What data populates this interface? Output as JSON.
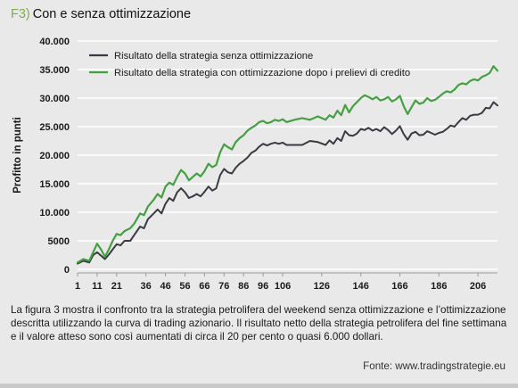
{
  "figure": {
    "number": "F3)",
    "title": "Con e senza ottimizzazione",
    "caption": "La figura 3 mostra il confronto tra la strategia petrolifera del weekend senza ottimizzazione e l’ottimizzazione descritta utilizzando la curva di trading azionario. Il risultato netto della strategia petrolifera del fine settimana e il valore atteso sono così aumentati di circa il 20 per cento o quasi 6.000 dollari.",
    "source": "Fonte: www.tradingstrategie.eu"
  },
  "chart_data": {
    "type": "line",
    "title": "",
    "xlabel": "",
    "ylabel": "Profitto in punti",
    "xlim": [
      1,
      216
    ],
    "ylim": [
      0,
      40000
    ],
    "x_ticks": [
      1,
      11,
      21,
      36,
      46,
      56,
      66,
      76,
      86,
      96,
      106,
      126,
      146,
      166,
      186,
      206
    ],
    "y_ticks": [
      {
        "value": 0,
        "label": "0"
      },
      {
        "value": 5000,
        "label": "5000"
      },
      {
        "value": 10000,
        "label": "10.000"
      },
      {
        "value": 15000,
        "label": "15.000"
      },
      {
        "value": 20000,
        "label": "20.000"
      },
      {
        "value": 25000,
        "label": "25.000"
      },
      {
        "value": 30000,
        "label": "30.000"
      },
      {
        "value": 35000,
        "label": "35.000"
      },
      {
        "value": 40000,
        "label": "40.000"
      }
    ],
    "grid": "horizontal",
    "legend_position": "top-left",
    "series": [
      {
        "name": "Risultato della strategia senza ottimizzazione",
        "color": "#3a3a42",
        "points": [
          [
            1,
            1000
          ],
          [
            4,
            1500
          ],
          [
            7,
            1200
          ],
          [
            9,
            2500
          ],
          [
            11,
            3000
          ],
          [
            13,
            2400
          ],
          [
            15,
            1800
          ],
          [
            17,
            2600
          ],
          [
            19,
            3500
          ],
          [
            21,
            4400
          ],
          [
            23,
            4200
          ],
          [
            25,
            5000
          ],
          [
            28,
            5000
          ],
          [
            30,
            6000
          ],
          [
            33,
            7500
          ],
          [
            35,
            7200
          ],
          [
            37,
            8800
          ],
          [
            40,
            9800
          ],
          [
            42,
            10500
          ],
          [
            44,
            9800
          ],
          [
            46,
            11500
          ],
          [
            48,
            12500
          ],
          [
            50,
            12000
          ],
          [
            52,
            13500
          ],
          [
            54,
            14200
          ],
          [
            56,
            13500
          ],
          [
            58,
            12500
          ],
          [
            60,
            12800
          ],
          [
            62,
            13200
          ],
          [
            64,
            12800
          ],
          [
            66,
            13600
          ],
          [
            68,
            14500
          ],
          [
            70,
            13800
          ],
          [
            72,
            14200
          ],
          [
            74,
            16500
          ],
          [
            76,
            17600
          ],
          [
            78,
            17000
          ],
          [
            80,
            16800
          ],
          [
            82,
            17800
          ],
          [
            84,
            18500
          ],
          [
            86,
            19000
          ],
          [
            88,
            19600
          ],
          [
            90,
            20400
          ],
          [
            92,
            20800
          ],
          [
            94,
            21500
          ],
          [
            96,
            22000
          ],
          [
            98,
            21700
          ],
          [
            100,
            22000
          ],
          [
            102,
            22200
          ],
          [
            104,
            22000
          ],
          [
            106,
            22200
          ],
          [
            108,
            21800
          ],
          [
            112,
            21800
          ],
          [
            116,
            21800
          ],
          [
            120,
            22500
          ],
          [
            124,
            22300
          ],
          [
            128,
            21800
          ],
          [
            130,
            22600
          ],
          [
            132,
            22000
          ],
          [
            134,
            23000
          ],
          [
            136,
            22500
          ],
          [
            138,
            24200
          ],
          [
            140,
            23500
          ],
          [
            142,
            23400
          ],
          [
            144,
            23800
          ],
          [
            146,
            24600
          ],
          [
            148,
            24400
          ],
          [
            150,
            24800
          ],
          [
            152,
            24300
          ],
          [
            154,
            24600
          ],
          [
            156,
            24200
          ],
          [
            158,
            24900
          ],
          [
            160,
            24400
          ],
          [
            162,
            23700
          ],
          [
            164,
            24300
          ],
          [
            166,
            25100
          ],
          [
            168,
            23700
          ],
          [
            170,
            22700
          ],
          [
            172,
            23800
          ],
          [
            174,
            24100
          ],
          [
            176,
            23500
          ],
          [
            178,
            23600
          ],
          [
            180,
            24200
          ],
          [
            182,
            23900
          ],
          [
            184,
            23600
          ],
          [
            186,
            23900
          ],
          [
            188,
            24100
          ],
          [
            190,
            24600
          ],
          [
            192,
            25200
          ],
          [
            194,
            25000
          ],
          [
            196,
            25800
          ],
          [
            198,
            26500
          ],
          [
            200,
            26200
          ],
          [
            202,
            26900
          ],
          [
            204,
            27100
          ],
          [
            206,
            27100
          ],
          [
            208,
            27400
          ],
          [
            210,
            28300
          ],
          [
            212,
            28200
          ],
          [
            214,
            29300
          ],
          [
            216,
            28700
          ]
        ]
      },
      {
        "name": "Risultato della strategia con ottimizzazione dopo i prelievi di credito",
        "color": "#44a041",
        "points": [
          [
            1,
            1200
          ],
          [
            4,
            1800
          ],
          [
            7,
            1500
          ],
          [
            9,
            3000
          ],
          [
            11,
            4500
          ],
          [
            13,
            3500
          ],
          [
            15,
            2200
          ],
          [
            17,
            3500
          ],
          [
            19,
            5000
          ],
          [
            21,
            6200
          ],
          [
            23,
            6000
          ],
          [
            25,
            6700
          ],
          [
            28,
            7200
          ],
          [
            30,
            8000
          ],
          [
            33,
            9800
          ],
          [
            35,
            9500
          ],
          [
            37,
            11000
          ],
          [
            40,
            12200
          ],
          [
            42,
            13200
          ],
          [
            44,
            12600
          ],
          [
            46,
            14500
          ],
          [
            48,
            15200
          ],
          [
            50,
            14800
          ],
          [
            52,
            16200
          ],
          [
            54,
            17400
          ],
          [
            56,
            16800
          ],
          [
            58,
            15600
          ],
          [
            60,
            16200
          ],
          [
            62,
            16800
          ],
          [
            64,
            16300
          ],
          [
            66,
            17200
          ],
          [
            68,
            18500
          ],
          [
            70,
            17900
          ],
          [
            72,
            18300
          ],
          [
            74,
            20500
          ],
          [
            76,
            21900
          ],
          [
            78,
            21400
          ],
          [
            80,
            21000
          ],
          [
            82,
            22300
          ],
          [
            84,
            23000
          ],
          [
            86,
            23500
          ],
          [
            88,
            24300
          ],
          [
            90,
            24800
          ],
          [
            92,
            25200
          ],
          [
            94,
            25800
          ],
          [
            96,
            26000
          ],
          [
            98,
            25600
          ],
          [
            100,
            25800
          ],
          [
            102,
            26200
          ],
          [
            104,
            26000
          ],
          [
            106,
            26300
          ],
          [
            108,
            25800
          ],
          [
            112,
            26200
          ],
          [
            116,
            26500
          ],
          [
            120,
            26200
          ],
          [
            124,
            26800
          ],
          [
            128,
            26200
          ],
          [
            130,
            27000
          ],
          [
            132,
            26600
          ],
          [
            134,
            27800
          ],
          [
            136,
            27000
          ],
          [
            138,
            28800
          ],
          [
            140,
            27500
          ],
          [
            142,
            28600
          ],
          [
            144,
            29300
          ],
          [
            146,
            30000
          ],
          [
            148,
            30500
          ],
          [
            150,
            30200
          ],
          [
            152,
            29800
          ],
          [
            154,
            30200
          ],
          [
            156,
            29600
          ],
          [
            158,
            29800
          ],
          [
            160,
            30200
          ],
          [
            162,
            29400
          ],
          [
            164,
            29800
          ],
          [
            166,
            30400
          ],
          [
            168,
            28600
          ],
          [
            170,
            27200
          ],
          [
            172,
            28400
          ],
          [
            174,
            29600
          ],
          [
            176,
            29000
          ],
          [
            178,
            29200
          ],
          [
            180,
            30000
          ],
          [
            182,
            29500
          ],
          [
            184,
            29700
          ],
          [
            186,
            30200
          ],
          [
            188,
            30800
          ],
          [
            190,
            31200
          ],
          [
            192,
            31000
          ],
          [
            194,
            31500
          ],
          [
            196,
            32300
          ],
          [
            198,
            32600
          ],
          [
            200,
            32400
          ],
          [
            202,
            33000
          ],
          [
            204,
            33300
          ],
          [
            206,
            33100
          ],
          [
            208,
            33700
          ],
          [
            210,
            34000
          ],
          [
            212,
            34400
          ],
          [
            214,
            35600
          ],
          [
            216,
            34800
          ]
        ]
      }
    ]
  }
}
